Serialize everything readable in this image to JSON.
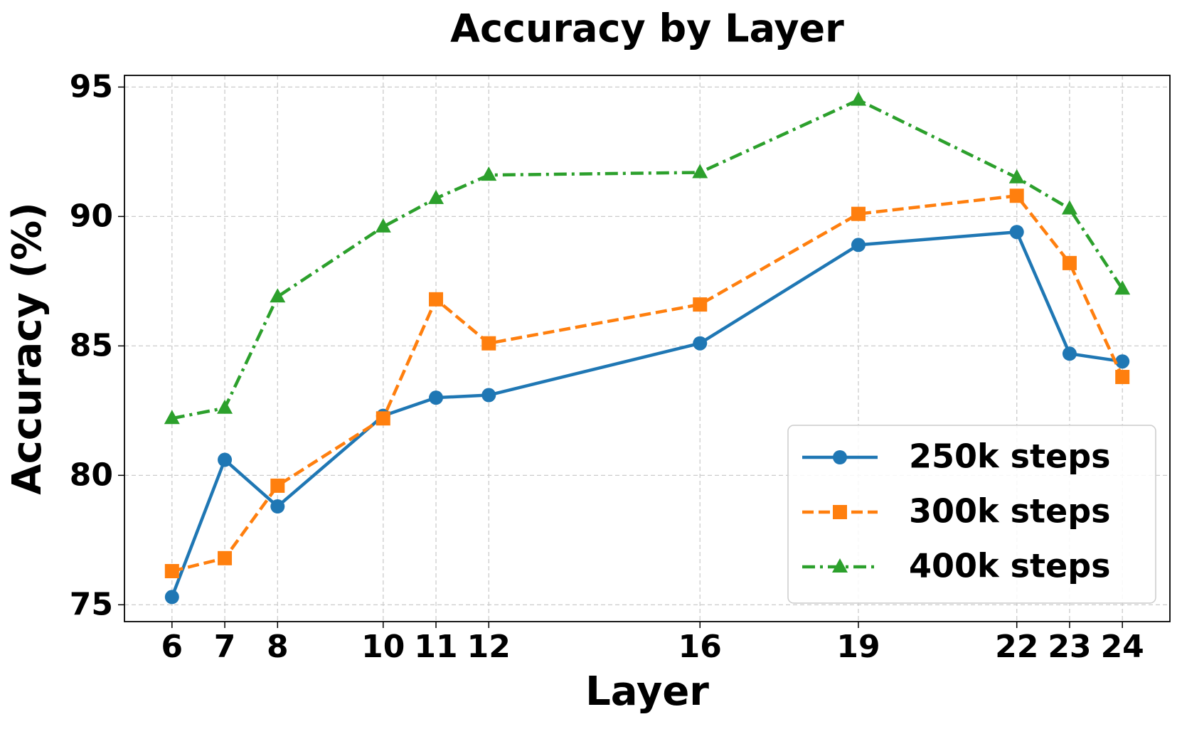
{
  "chart_data": {
    "type": "line",
    "title": "Accuracy by Layer",
    "x_label": "Layer",
    "y_label": "Accuracy (%)",
    "x": [
      6,
      7,
      8,
      10,
      11,
      12,
      16,
      19,
      22,
      23,
      24
    ],
    "series": [
      {
        "name": "250k steps",
        "color": "#1f77b4",
        "linestyle": "solid",
        "marker": "circle",
        "values": [
          75.3,
          80.6,
          78.8,
          82.3,
          83.0,
          83.1,
          85.1,
          88.9,
          89.4,
          84.7,
          84.4
        ]
      },
      {
        "name": "300k steps",
        "color": "#ff7f0e",
        "linestyle": "dashed",
        "marker": "square",
        "values": [
          76.3,
          76.8,
          79.6,
          82.2,
          86.8,
          85.1,
          86.6,
          90.1,
          90.8,
          88.2,
          83.8
        ]
      },
      {
        "name": "400k steps",
        "color": "#2ca02c",
        "linestyle": "dashdot",
        "marker": "triangle",
        "values": [
          82.2,
          82.6,
          86.9,
          89.6,
          90.7,
          91.6,
          91.7,
          94.5,
          91.5,
          90.3,
          87.2
        ]
      }
    ],
    "xlim": [
      5.1,
      24.9
    ],
    "xticks": [
      6,
      7,
      8,
      10,
      11,
      12,
      16,
      19,
      22,
      23,
      24
    ],
    "ylim": [
      74.35,
      95.45
    ],
    "yticks": [
      75,
      80,
      85,
      90,
      95
    ],
    "grid": true,
    "legend": "lower right"
  }
}
